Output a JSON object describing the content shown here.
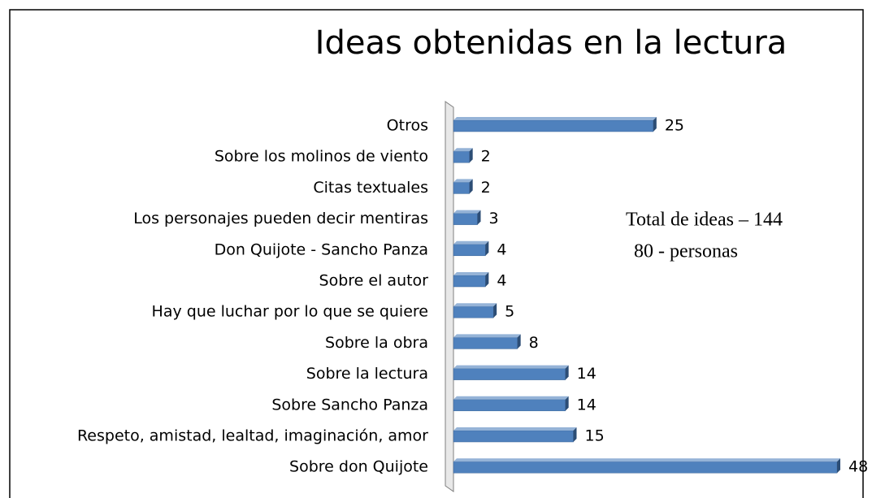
{
  "chart_data": {
    "type": "bar",
    "orientation": "horizontal",
    "title": "Ideas obtenidas en la lectura",
    "categories": [
      "Otros",
      "Sobre los molinos de viento",
      "Citas textuales",
      "Los personajes pueden decir mentiras",
      "Don Quijote - Sancho Panza",
      "Sobre el autor",
      "Hay que luchar por lo que se quiere",
      "Sobre la obra",
      "Sobre la lectura",
      "Sobre Sancho Panza",
      "Respeto, amistad, lealtad, imaginación, amor",
      "Sobre don Quijote"
    ],
    "values": [
      25,
      2,
      2,
      3,
      4,
      4,
      5,
      8,
      14,
      14,
      15,
      48
    ],
    "color": "#4f81bd",
    "annotations": [
      "Total de ideas – 144",
      "80 - personas"
    ]
  }
}
